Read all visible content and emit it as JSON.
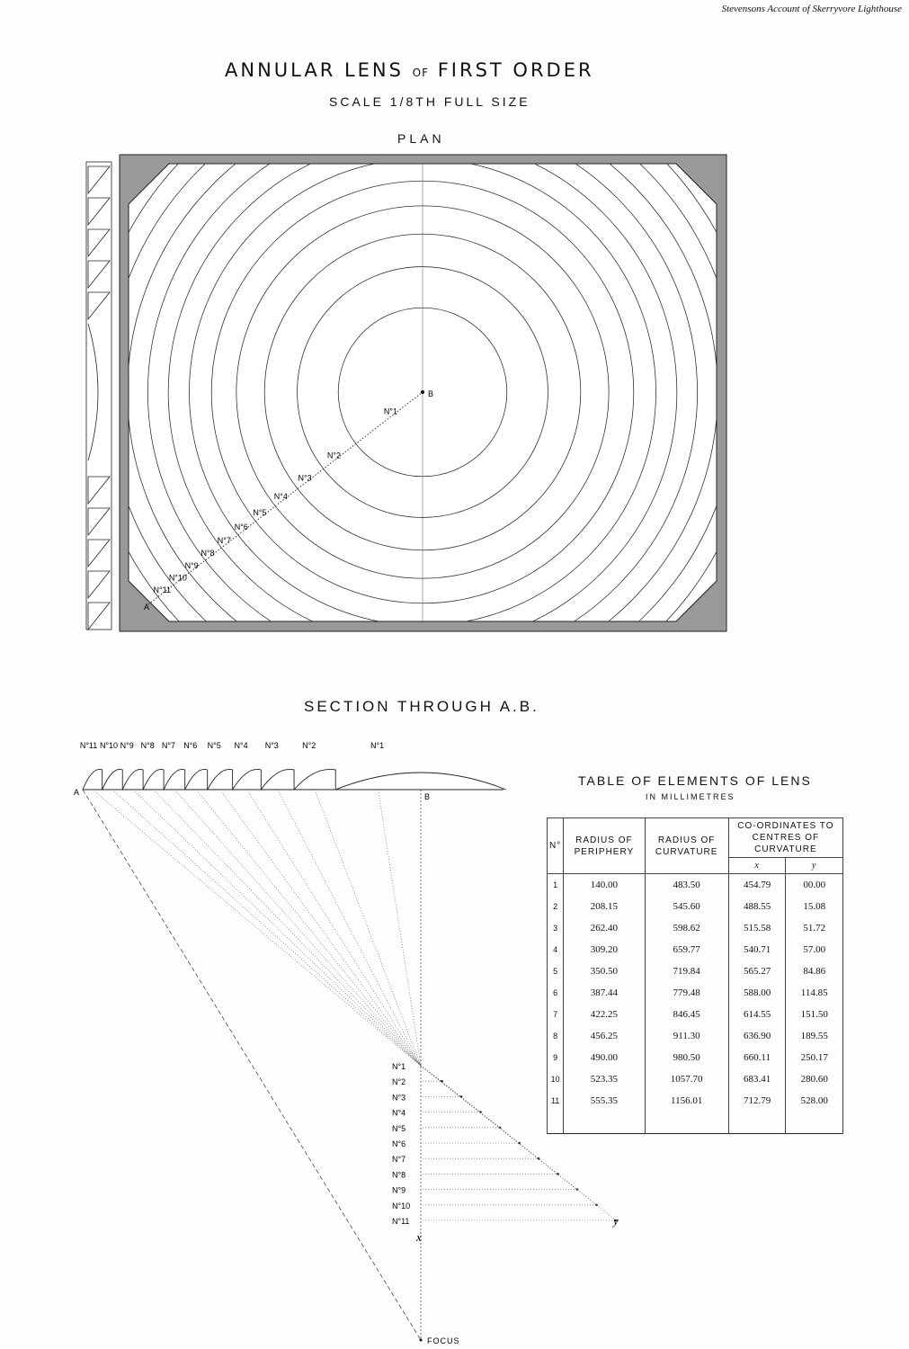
{
  "credit": "Stevensons Account of Skerryvore Lighthouse",
  "title": {
    "main1": "ANNULAR LENS",
    "of": "OF",
    "main2": "FIRST ORDER"
  },
  "scale": "SCALE 1/8TH FULL SIZE",
  "plan_label": "PLAN",
  "section_label": "SECTION THROUGH A.B.",
  "points": {
    "a": "A",
    "b": "B",
    "x": "x",
    "y": "y",
    "focus": "FOCUS"
  },
  "zones": [
    "N°1",
    "N°2",
    "N°3",
    "N°4",
    "N°5",
    "N°6",
    "N°7",
    "N°8",
    "N°9",
    "N°10",
    "N°11"
  ],
  "table": {
    "title": "TABLE OF ELEMENTS OF LENS",
    "subtitle": "IN MILLIMETRES",
    "headers": {
      "no": "N°",
      "periphery": "RADIUS OF PERIPHERY",
      "curvature": "RADIUS OF CURVATURE",
      "coords": "CO-ORDINATES TO CENTRES OF CURVATURE",
      "x": "x",
      "y": "y"
    },
    "rows": [
      [
        "1",
        "140.00",
        "483.50",
        "454.79",
        "00.00"
      ],
      [
        "2",
        "208.15",
        "545.60",
        "488.55",
        "15.08"
      ],
      [
        "3",
        "262.40",
        "598.62",
        "515.58",
        "51.72"
      ],
      [
        "4",
        "309.20",
        "659.77",
        "540.71",
        "57.00"
      ],
      [
        "5",
        "350.50",
        "719.84",
        "565.27",
        "84.86"
      ],
      [
        "6",
        "387.44",
        "779.48",
        "588.00",
        "114.85"
      ],
      [
        "7",
        "422.25",
        "846.45",
        "614.55",
        "151.50"
      ],
      [
        "8",
        "456.25",
        "911.30",
        "636.90",
        "189.55"
      ],
      [
        "9",
        "490.00",
        "980.50",
        "660.11",
        "250.17"
      ],
      [
        "10",
        "523.35",
        "1057.70",
        "683.41",
        "280.60"
      ],
      [
        "11",
        "555.35",
        "1156.01",
        "712.79",
        "528.00"
      ]
    ]
  }
}
